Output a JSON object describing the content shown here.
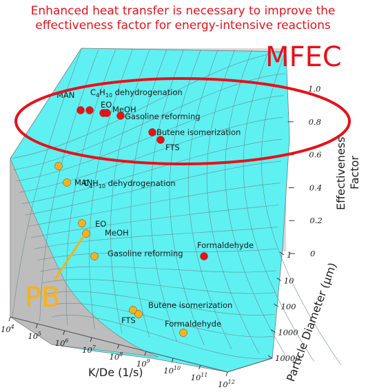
{
  "banner": {
    "line1": "Enhanced heat transfer is necessary to improve the",
    "line2": "effectiveness factor for energy-intensive reactions"
  },
  "callouts": {
    "mfec": "MFEC",
    "pb": "PB"
  },
  "colors": {
    "surface": "#5ff0f2",
    "red": "#e8101a",
    "orange": "#f5b21a",
    "wall": "#c8c8c8"
  },
  "chart_data": {
    "type": "scatter",
    "xlabel": "K/De (1/s)",
    "ylabel": "Particle Diameter (μm)",
    "zlabel": "Effectiveness Factor",
    "x_ticks": [
      "10^4",
      "10^5",
      "10^6",
      "10^7",
      "10^8",
      "10^9",
      "10^10",
      "10^11",
      "10^12"
    ],
    "y_ticks": [
      "1",
      "10",
      "100",
      "1000",
      "10000"
    ],
    "z_ticks": [
      "0",
      "0.2",
      "0.4",
      "0.6",
      "0.8",
      "1.0"
    ],
    "series": [
      {
        "name": "MFEC",
        "color": "#e8101a",
        "points": [
          {
            "label": "MAN",
            "eta": 0.98
          },
          {
            "label": "C4H10 dehydrogenation",
            "eta": 0.98
          },
          {
            "label": "EO",
            "eta": 0.97
          },
          {
            "label": "MeOH",
            "eta": 0.97
          },
          {
            "label": "Gasoline reforming",
            "eta": 0.95
          },
          {
            "label": "Butene isomerization",
            "eta": 0.9
          },
          {
            "label": "FTS",
            "eta": 0.87
          },
          {
            "label": "Formaldehyde",
            "eta": 0.0
          }
        ]
      },
      {
        "name": "PB",
        "color": "#f5b21a",
        "points": [
          {
            "label": "MAN",
            "eta": 0.55
          },
          {
            "label": "C4H10 dehydrogenation",
            "eta": 0.48
          },
          {
            "label": "EO",
            "eta": 0.3
          },
          {
            "label": "MeOH",
            "eta": 0.28
          },
          {
            "label": "Gasoline reforming",
            "eta": 0.1
          },
          {
            "label": "Butene isomerization",
            "eta": 0.05
          },
          {
            "label": "FTS",
            "eta": 0.05
          },
          {
            "label": "Formaldehyde",
            "eta": 0.02
          }
        ]
      }
    ]
  }
}
